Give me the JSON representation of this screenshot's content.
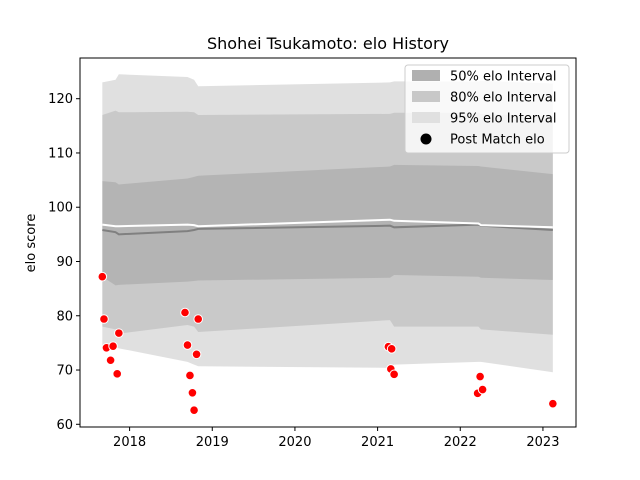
{
  "chart_data": {
    "type": "line",
    "title": "Shohei Tsukamoto: elo History",
    "xlabel": "",
    "ylabel": "elo score",
    "xlim": [
      2017.4,
      2023.4
    ],
    "ylim": [
      59.5,
      127.5
    ],
    "x_ticks": [
      2018,
      2019,
      2020,
      2021,
      2022,
      2023
    ],
    "x_tick_labels": [
      "2018",
      "2019",
      "2020",
      "2021",
      "2022",
      "2023"
    ],
    "y_ticks": [
      60,
      70,
      80,
      90,
      100,
      110,
      120
    ],
    "y_tick_labels": [
      "60",
      "70",
      "80",
      "90",
      "100",
      "110",
      "120"
    ],
    "grid": false,
    "legend": {
      "placement": "top-right",
      "entries": [
        {
          "label": "50% elo Interval",
          "color": "#b0b0b0",
          "kind": "patch"
        },
        {
          "label": "80% elo Interval",
          "color": "#c8c8c8",
          "kind": "patch"
        },
        {
          "label": "95% elo Interval",
          "color": "#e0e0e0",
          "kind": "patch"
        },
        {
          "label": "Post Match elo",
          "color": "#000000",
          "kind": "marker"
        }
      ]
    },
    "bands": {
      "x": [
        2017.67,
        2017.83,
        2017.87,
        2018.7,
        2018.78,
        2018.83,
        2021.15,
        2021.2,
        2022.22,
        2022.25,
        2023.12
      ],
      "p95_upper": [
        123.0,
        123.5,
        124.5,
        124.0,
        123.5,
        122.3,
        123.0,
        123.2,
        123.2,
        123.3,
        122.8
      ],
      "p80_upper": [
        117.0,
        117.8,
        117.5,
        117.6,
        117.5,
        117.0,
        117.2,
        117.4,
        117.4,
        117.2,
        116.7
      ],
      "p50_upper": [
        104.8,
        104.6,
        104.2,
        105.3,
        105.6,
        105.8,
        107.5,
        107.8,
        107.6,
        107.5,
        106.1
      ],
      "p50_lower": [
        87.2,
        85.6,
        85.7,
        86.3,
        86.4,
        86.5,
        87.0,
        87.5,
        87.2,
        87.0,
        86.6
      ],
      "p80_lower": [
        78.0,
        77.5,
        76.7,
        78.3,
        78.0,
        77.0,
        79.2,
        78.0,
        78.0,
        77.5,
        76.5
      ],
      "p95_lower": [
        73.8,
        74.3,
        74.0,
        71.5,
        71.0,
        70.7,
        70.4,
        71.0,
        71.5,
        71.5,
        69.6
      ]
    },
    "mean_line": {
      "x": [
        2017.67,
        2017.83,
        2017.87,
        2018.7,
        2018.78,
        2018.83,
        2021.15,
        2021.2,
        2022.22,
        2022.25,
        2023.12
      ],
      "y": [
        95.8,
        95.4,
        95.0,
        95.6,
        95.8,
        96.0,
        96.6,
        96.3,
        96.8,
        96.6,
        95.8
      ],
      "color": "#808080"
    },
    "median_line": {
      "x": [
        2017.67,
        2017.83,
        2017.87,
        2018.7,
        2018.78,
        2018.83,
        2021.15,
        2021.2,
        2022.22,
        2022.25,
        2023.12
      ],
      "y": [
        96.8,
        96.5,
        96.5,
        96.8,
        96.7,
        96.5,
        97.7,
        97.5,
        97.0,
        96.7,
        96.3
      ],
      "color": "#ffffff"
    },
    "post_match_elo": {
      "color": "#ff0000",
      "points": [
        {
          "x": 2017.67,
          "y": 87.2
        },
        {
          "x": 2017.69,
          "y": 79.4
        },
        {
          "x": 2017.72,
          "y": 74.1
        },
        {
          "x": 2017.77,
          "y": 71.8
        },
        {
          "x": 2017.8,
          "y": 74.4
        },
        {
          "x": 2017.85,
          "y": 69.3
        },
        {
          "x": 2017.87,
          "y": 76.8
        },
        {
          "x": 2018.67,
          "y": 80.6
        },
        {
          "x": 2018.7,
          "y": 74.6
        },
        {
          "x": 2018.73,
          "y": 69.0
        },
        {
          "x": 2018.76,
          "y": 65.8
        },
        {
          "x": 2018.78,
          "y": 62.6
        },
        {
          "x": 2018.81,
          "y": 72.9
        },
        {
          "x": 2018.83,
          "y": 79.4
        },
        {
          "x": 2021.13,
          "y": 74.3
        },
        {
          "x": 2021.16,
          "y": 70.2
        },
        {
          "x": 2021.17,
          "y": 73.9
        },
        {
          "x": 2021.2,
          "y": 69.2
        },
        {
          "x": 2022.21,
          "y": 65.7
        },
        {
          "x": 2022.24,
          "y": 68.8
        },
        {
          "x": 2022.27,
          "y": 66.4
        },
        {
          "x": 2023.12,
          "y": 63.8
        }
      ]
    }
  }
}
